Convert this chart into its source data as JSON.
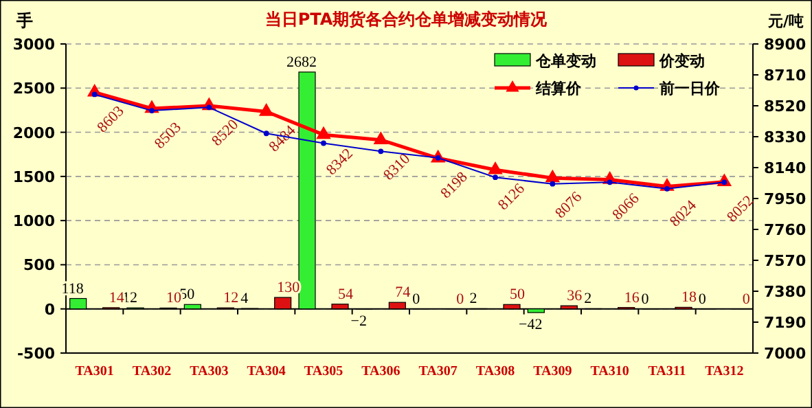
{
  "chart_data": {
    "type": "bar",
    "title": "当日PTA期货各合约仓单增减变动情况",
    "ylabel": "手",
    "y2label": "元/吨",
    "categories": [
      "TA301",
      "TA302",
      "TA303",
      "TA304",
      "TA305",
      "TA306",
      "TA307",
      "TA308",
      "TA309",
      "TA310",
      "TA311",
      "TA312"
    ],
    "series": [
      {
        "name": "仓单变动",
        "color": "#33ee33",
        "values": [
          118,
          12,
          50,
          4,
          2682,
          -2,
          0,
          2,
          -42,
          2,
          0,
          0
        ],
        "value_labels": [
          "118",
          "12",
          "50",
          "4",
          "2682",
          "−2",
          "0",
          "2",
          "−42",
          "2",
          "0",
          "0"
        ]
      },
      {
        "name": "价变动",
        "color": "#dd1111",
        "values": [
          14,
          10,
          12,
          130,
          54,
          74,
          0,
          50,
          36,
          16,
          18,
          0
        ],
        "value_labels": [
          "14",
          "10",
          "12",
          "130",
          "54",
          "74",
          "0",
          "50",
          "36",
          "16",
          "18",
          "0"
        ]
      },
      {
        "name": "结算价",
        "type": "line",
        "axis": "y2",
        "color": "#ff0000",
        "marker": "triangle",
        "values": [
          8603,
          8503,
          8520,
          8484,
          8342,
          8310,
          8198,
          8126,
          8076,
          8066,
          8024,
          8052
        ],
        "value_labels": [
          "8603",
          "8503",
          "8520",
          "8484",
          "8342",
          "8310",
          "8198",
          "8126",
          "8076",
          "8066",
          "8024",
          "8052"
        ]
      },
      {
        "name": "前一日价",
        "type": "line",
        "axis": "y2",
        "color": "#0000cc",
        "marker": "circle",
        "values": [
          8590,
          8490,
          8510,
          8350,
          8290,
          8240,
          8200,
          8080,
          8040,
          8050,
          8010,
          8050
        ]
      }
    ],
    "ylim": [
      -500,
      3000
    ],
    "yticks": [
      -500,
      0,
      500,
      1000,
      1500,
      2000,
      2500,
      3000
    ],
    "y2lim": [
      7000,
      8900
    ],
    "y2ticks": [
      7000,
      7190,
      7380,
      7570,
      7760,
      7950,
      8140,
      8330,
      8520,
      8710,
      8900
    ],
    "grid": "y",
    "legend": "top right"
  }
}
